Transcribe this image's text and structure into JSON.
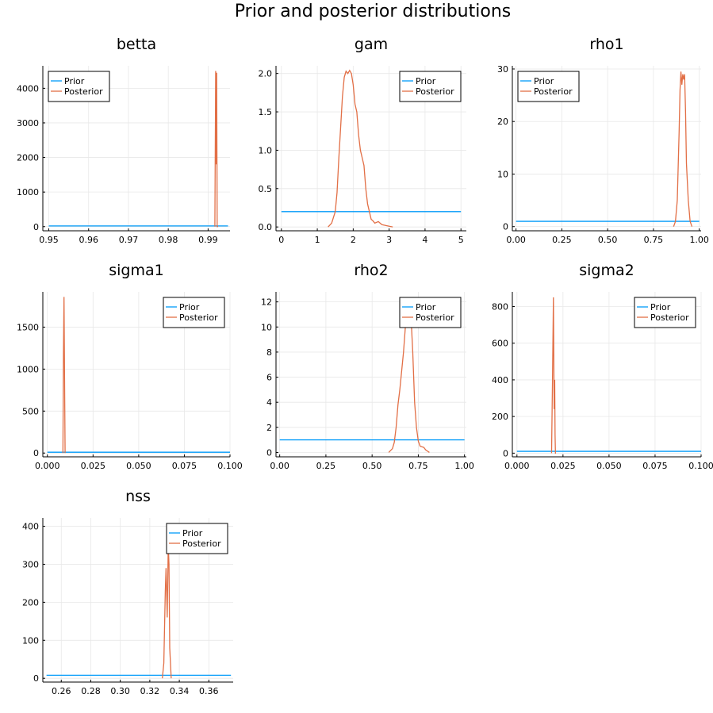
{
  "figure": {
    "title": "Prior and posterior distributions"
  },
  "legend": {
    "prior_label": "Prior",
    "posterior_label": "Posterior"
  },
  "colors": {
    "prior": "#009af9",
    "posterior": "#e26f46"
  },
  "chart_data": [
    {
      "type": "line",
      "title": "betta",
      "xlim": [
        0.9485,
        0.9955
      ],
      "ylim": [
        -120,
        4650
      ],
      "xticks": [
        0.95,
        0.96,
        0.97,
        0.98,
        0.99
      ],
      "xtick_labels": [
        "0.95",
        "0.96",
        "0.97",
        "0.98",
        "0.99"
      ],
      "yticks": [
        0,
        1000,
        2000,
        3000,
        4000
      ],
      "ytick_labels": [
        "0",
        "1000",
        "2000",
        "3000",
        "4000"
      ],
      "legend_position": "top-left",
      "grid": true,
      "series": [
        {
          "name": "Prior",
          "x": [
            0.95,
            0.995
          ],
          "y": [
            21,
            21
          ]
        },
        {
          "name": "Posterior",
          "x": [
            0.9917,
            0.9919,
            0.99205,
            0.99215,
            0.99222,
            0.99228,
            0.9925
          ],
          "y": [
            0,
            4500,
            1800,
            4450,
            2200,
            0,
            0
          ]
        }
      ]
    },
    {
      "type": "line",
      "title": "gam",
      "xlim": [
        -0.15,
        5.15
      ],
      "ylim": [
        -0.05,
        2.1
      ],
      "xticks": [
        0,
        1,
        2,
        3,
        4,
        5
      ],
      "xtick_labels": [
        "0",
        "1",
        "2",
        "3",
        "4",
        "5"
      ],
      "yticks": [
        0,
        0.5,
        1.0,
        1.5,
        2.0
      ],
      "ytick_labels": [
        "0.0",
        "0.5",
        "1.0",
        "1.5",
        "2.0"
      ],
      "legend_position": "top-right",
      "grid": true,
      "series": [
        {
          "name": "Prior",
          "x": [
            0,
            5
          ],
          "y": [
            0.2,
            0.2
          ]
        },
        {
          "name": "Posterior",
          "x": [
            1.3,
            1.4,
            1.5,
            1.55,
            1.6,
            1.65,
            1.7,
            1.75,
            1.8,
            1.85,
            1.9,
            1.95,
            2.0,
            2.05,
            2.1,
            2.15,
            2.2,
            2.3,
            2.35,
            2.4,
            2.45,
            2.5,
            2.55,
            2.6,
            2.7,
            2.75,
            2.8,
            2.9,
            3.0,
            3.1
          ],
          "y": [
            0.0,
            0.05,
            0.2,
            0.45,
            0.9,
            1.3,
            1.7,
            1.95,
            2.03,
            2.0,
            2.04,
            2.0,
            1.85,
            1.6,
            1.5,
            1.2,
            1.0,
            0.8,
            0.5,
            0.3,
            0.2,
            0.1,
            0.08,
            0.05,
            0.07,
            0.05,
            0.03,
            0.02,
            0.01,
            0.0
          ]
        }
      ]
    },
    {
      "type": "line",
      "title": "rho1",
      "xlim": [
        -0.02,
        1.01
      ],
      "ylim": [
        -0.8,
        30.6
      ],
      "xticks": [
        0,
        0.25,
        0.5,
        0.75,
        1.0
      ],
      "xtick_labels": [
        "0.00",
        "0.25",
        "0.50",
        "0.75",
        "1.00"
      ],
      "yticks": [
        0,
        10,
        20,
        30
      ],
      "ytick_labels": [
        "0",
        "10",
        "20",
        "30"
      ],
      "legend_position": "top-left",
      "grid": true,
      "series": [
        {
          "name": "Prior",
          "x": [
            0,
            1
          ],
          "y": [
            1,
            1
          ]
        },
        {
          "name": "Posterior",
          "x": [
            0.86,
            0.87,
            0.88,
            0.89,
            0.895,
            0.9,
            0.905,
            0.91,
            0.915,
            0.92,
            0.925,
            0.93,
            0.94,
            0.95,
            0.96
          ],
          "y": [
            0,
            1,
            5,
            18,
            26,
            29.5,
            27,
            29,
            28,
            29,
            22,
            12,
            5,
            1,
            0
          ]
        }
      ]
    },
    {
      "type": "line",
      "title": "sigma1",
      "xlim": [
        -0.0025,
        0.1
      ],
      "ylim": [
        -45,
        1920
      ],
      "xticks": [
        0,
        0.025,
        0.05,
        0.075,
        0.1
      ],
      "xtick_labels": [
        "0.000",
        "0.025",
        "0.050",
        "0.075",
        "0.100"
      ],
      "yticks": [
        0,
        500,
        1000,
        1500
      ],
      "ytick_labels": [
        "0",
        "500",
        "1000",
        "1500"
      ],
      "legend_position": "top-right",
      "grid": true,
      "series": [
        {
          "name": "Prior",
          "x": [
            0,
            0.1
          ],
          "y": [
            10,
            10
          ]
        },
        {
          "name": "Posterior",
          "x": [
            0.0085,
            0.0088,
            0.0091,
            0.0094,
            0.0097
          ],
          "y": [
            0,
            1200,
            1860,
            900,
            0
          ]
        }
      ]
    },
    {
      "type": "line",
      "title": "rho2",
      "xlim": [
        -0.02,
        1.01
      ],
      "ylim": [
        -0.35,
        12.8
      ],
      "xticks": [
        0,
        0.25,
        0.5,
        0.75,
        1.0
      ],
      "xtick_labels": [
        "0.00",
        "0.25",
        "0.50",
        "0.75",
        "1.00"
      ],
      "yticks": [
        0,
        2,
        4,
        6,
        8,
        10,
        12
      ],
      "ytick_labels": [
        "0",
        "2",
        "4",
        "6",
        "8",
        "10",
        "12"
      ],
      "legend_position": "top-right",
      "grid": true,
      "series": [
        {
          "name": "Prior",
          "x": [
            0,
            1
          ],
          "y": [
            1,
            1
          ]
        },
        {
          "name": "Posterior",
          "x": [
            0.59,
            0.61,
            0.62,
            0.63,
            0.64,
            0.65,
            0.66,
            0.67,
            0.68,
            0.69,
            0.7,
            0.71,
            0.72,
            0.73,
            0.74,
            0.75,
            0.76,
            0.78,
            0.79,
            0.8,
            0.81
          ],
          "y": [
            0,
            0.3,
            0.8,
            2,
            3.8,
            5,
            6.5,
            8,
            10,
            11,
            12.3,
            11,
            8,
            4,
            2,
            0.9,
            0.5,
            0.4,
            0.2,
            0.1,
            0
          ]
        }
      ]
    },
    {
      "type": "line",
      "title": "sigma2",
      "xlim": [
        -0.0025,
        0.1
      ],
      "ylim": [
        -20,
        880
      ],
      "xticks": [
        0,
        0.025,
        0.05,
        0.075,
        0.1
      ],
      "xtick_labels": [
        "0.000",
        "0.025",
        "0.050",
        "0.075",
        "0.100"
      ],
      "yticks": [
        0,
        200,
        400,
        600,
        800
      ],
      "ytick_labels": [
        "0",
        "200",
        "400",
        "600",
        "800"
      ],
      "legend_position": "top-right",
      "grid": true,
      "series": [
        {
          "name": "Prior",
          "x": [
            0,
            0.1
          ],
          "y": [
            10,
            10
          ]
        },
        {
          "name": "Posterior",
          "x": [
            0.0188,
            0.0193,
            0.0198,
            0.0202,
            0.0205,
            0.0207,
            0.0209,
            0.0212
          ],
          "y": [
            0,
            400,
            850,
            240,
            400,
            100,
            0,
            0
          ]
        }
      ]
    },
    {
      "type": "line",
      "title": "nss",
      "xlim": [
        0.2475,
        0.3765
      ],
      "ylim": [
        -10,
        422
      ],
      "xticks": [
        0.26,
        0.28,
        0.3,
        0.32,
        0.34,
        0.36
      ],
      "xtick_labels": [
        "0.26",
        "0.28",
        "0.30",
        "0.32",
        "0.34",
        "0.36"
      ],
      "yticks": [
        0,
        100,
        200,
        300,
        400
      ],
      "ytick_labels": [
        "0",
        "100",
        "200",
        "300",
        "400"
      ],
      "legend_position": "top-right",
      "grid": true,
      "series": [
        {
          "name": "Prior",
          "x": [
            0.25,
            0.375
          ],
          "y": [
            8,
            8
          ]
        },
        {
          "name": "Posterior",
          "x": [
            0.3285,
            0.3295,
            0.3305,
            0.331,
            0.3318,
            0.3325,
            0.333,
            0.3335,
            0.3345
          ],
          "y": [
            0,
            40,
            230,
            290,
            160,
            350,
            300,
            80,
            0
          ]
        }
      ]
    }
  ]
}
